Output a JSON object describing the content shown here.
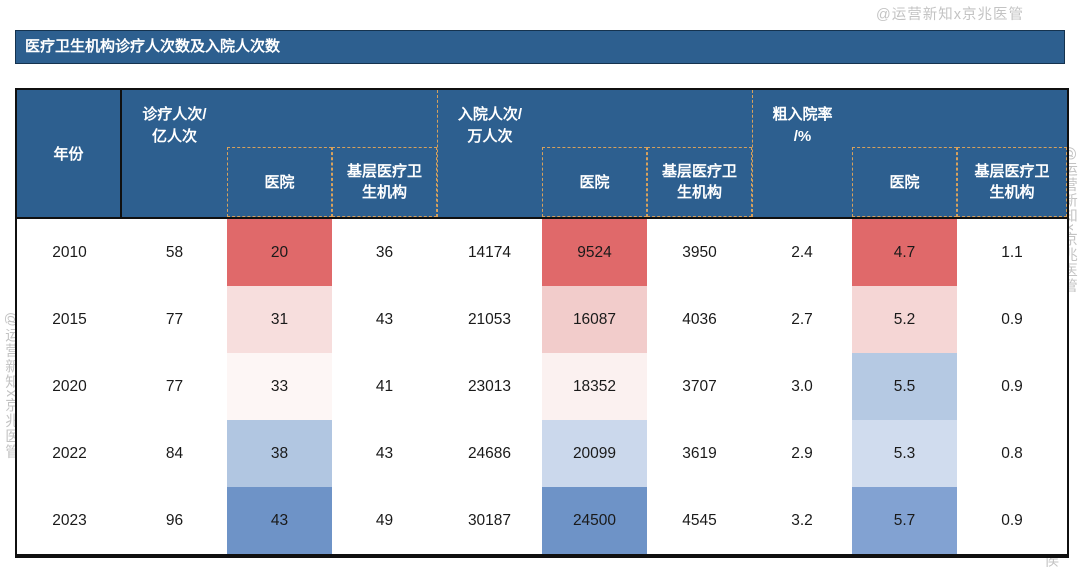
{
  "title": "医疗卫生机构诊疗人次数及入院人次数",
  "watermark": "@运营新知x京兆医管",
  "header": {
    "year": "年份",
    "visits_line1": "诊疗人次/",
    "visits_line2": "亿人次",
    "adm_line1": "入院人次/",
    "adm_line2": "万人次",
    "rate_line1": "粗入院率",
    "rate_line2": "/%",
    "hospital": "医院",
    "primary": "基层医疗卫生机构"
  },
  "chart_data": {
    "type": "table",
    "title": "医疗卫生机构诊疗人次数及入院人次数",
    "columns": [
      "年份",
      "诊疗人次/亿人次",
      "诊疗-医院",
      "诊疗-基层医疗卫生机构",
      "入院人次/万人次",
      "入院-医院",
      "入院-基层医疗卫生机构",
      "粗入院率/%",
      "粗入院率-医院",
      "粗入院率-基层医疗卫生机构"
    ],
    "rows": [
      [
        "2010",
        "58",
        "20",
        "36",
        "14174",
        "9524",
        "3950",
        "2.4",
        "4.7",
        "1.1"
      ],
      [
        "2015",
        "77",
        "31",
        "43",
        "21053",
        "16087",
        "4036",
        "2.7",
        "5.2",
        "0.9"
      ],
      [
        "2020",
        "77",
        "33",
        "41",
        "23013",
        "18352",
        "3707",
        "3.0",
        "5.5",
        "0.9"
      ],
      [
        "2022",
        "84",
        "38",
        "43",
        "24686",
        "20099",
        "3619",
        "2.9",
        "5.3",
        "0.8"
      ],
      [
        "2023",
        "96",
        "43",
        "49",
        "30187",
        "24500",
        "4545",
        "3.2",
        "5.7",
        "0.9"
      ]
    ],
    "heatmap_note": "医院 columns use red-to-blue color scale"
  },
  "cell_colors": {
    "visits_hospital": [
      "#e0696a",
      "#f7dedd",
      "#fdf6f5",
      "#b1c6e1",
      "#6e93c7"
    ],
    "adm_hospital": [
      "#e0696a",
      "#f2cccb",
      "#fbf1f0",
      "#cbd8ec",
      "#6e93c7"
    ],
    "rate_hospital": [
      "#e0696a",
      "#f5d6d5",
      "#b5c9e3",
      "#d0dcee",
      "#82a2d2"
    ]
  }
}
